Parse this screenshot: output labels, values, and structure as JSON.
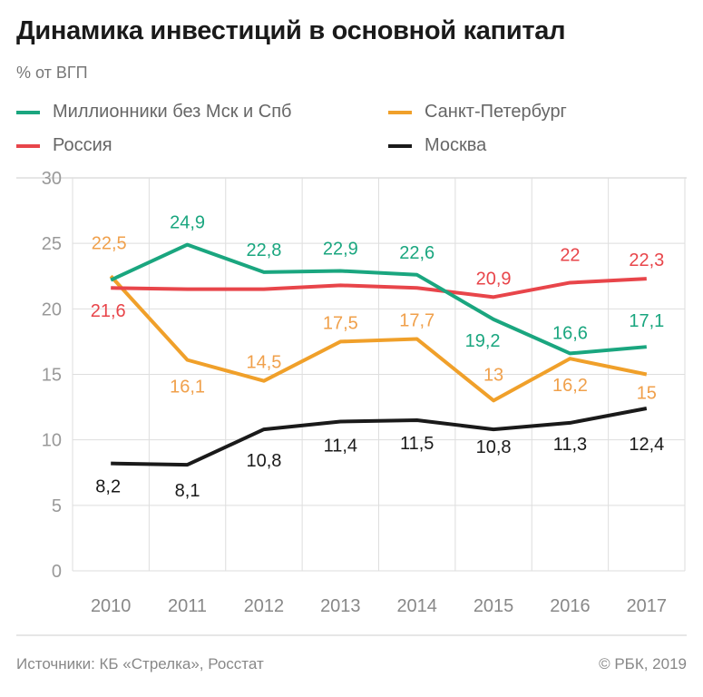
{
  "chart_data": {
    "type": "line",
    "title": "Динамика инвестиций в основной капитал",
    "subtitle": "% от ВГП",
    "categories": [
      "2010",
      "2011",
      "2012",
      "2013",
      "2014",
      "2015",
      "2016",
      "2017"
    ],
    "ylim": [
      0,
      30
    ],
    "yticks": [
      "0",
      "5",
      "10",
      "15",
      "20",
      "25",
      "30"
    ],
    "grid": true,
    "legend_placement": "top",
    "series": [
      {
        "name": "Миллионники без Мск и Спб",
        "color": "#1aa67f",
        "values": [
          22.2,
          24.9,
          22.8,
          22.9,
          22.6,
          19.2,
          16.6,
          17.1
        ],
        "labels": [
          "",
          "24,9",
          "22,8",
          "22,9",
          "22,6",
          "19,2",
          "16,6",
          "17,1"
        ]
      },
      {
        "name": "Санкт-Петербург",
        "color": "#f0a02a",
        "values": [
          22.5,
          16.1,
          14.5,
          17.5,
          17.7,
          13,
          16.2,
          15
        ],
        "labels": [
          "22,5",
          "16,1",
          "14,5",
          "17,5",
          "17,7",
          "13",
          "16,2",
          "15"
        ]
      },
      {
        "name": "Россия",
        "color": "#e8454a",
        "values": [
          21.6,
          21.5,
          21.5,
          21.8,
          21.6,
          20.9,
          22,
          22.3
        ],
        "labels": [
          "21,6",
          "",
          "",
          "",
          "",
          "20,9",
          "22",
          "22,3"
        ]
      },
      {
        "name": "Москва",
        "color": "#1a1a1a",
        "values": [
          8.2,
          8.1,
          10.8,
          11.4,
          11.5,
          10.8,
          11.3,
          12.4
        ],
        "labels": [
          "8,2",
          "8,1",
          "10,8",
          "11,4",
          "11,5",
          "10,8",
          "11,3",
          "12,4"
        ]
      }
    ]
  },
  "footer": {
    "source": "Источники: КБ «Стрелка», Росстат",
    "copyright": "© РБК, 2019"
  }
}
